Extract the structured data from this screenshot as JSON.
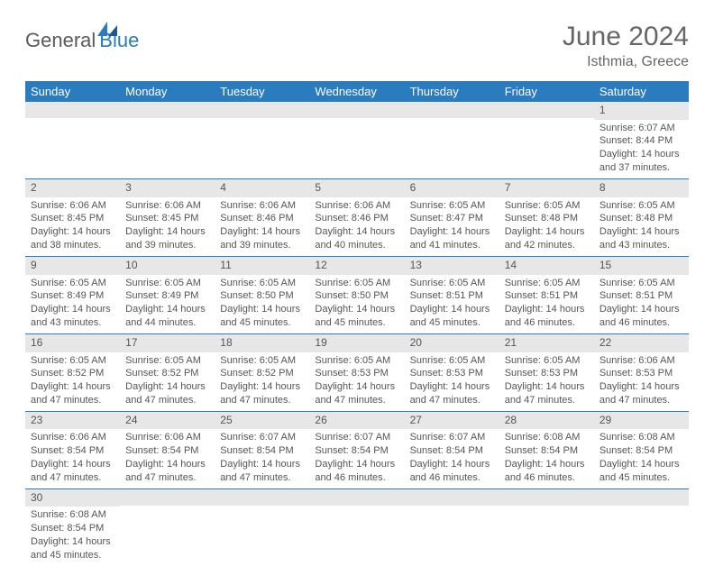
{
  "logo": {
    "part1": "General",
    "part2": "Blue"
  },
  "header": {
    "title": "June 2024",
    "location": "Isthmia, Greece"
  },
  "colors": {
    "header_bg": "#2b7bbf",
    "header_text": "#ffffff",
    "daynum_bg": "#e7e7e7",
    "cell_border": "#2b7bbf",
    "body_text": "#555555",
    "page_bg": "#ffffff"
  },
  "day_labels": [
    "Sunday",
    "Monday",
    "Tuesday",
    "Wednesday",
    "Thursday",
    "Friday",
    "Saturday"
  ],
  "weeks": [
    [
      null,
      null,
      null,
      null,
      null,
      null,
      {
        "n": "1",
        "sunrise": "Sunrise: 6:07 AM",
        "sunset": "Sunset: 8:44 PM",
        "day1": "Daylight: 14 hours",
        "day2": "and 37 minutes."
      }
    ],
    [
      {
        "n": "2",
        "sunrise": "Sunrise: 6:06 AM",
        "sunset": "Sunset: 8:45 PM",
        "day1": "Daylight: 14 hours",
        "day2": "and 38 minutes."
      },
      {
        "n": "3",
        "sunrise": "Sunrise: 6:06 AM",
        "sunset": "Sunset: 8:45 PM",
        "day1": "Daylight: 14 hours",
        "day2": "and 39 minutes."
      },
      {
        "n": "4",
        "sunrise": "Sunrise: 6:06 AM",
        "sunset": "Sunset: 8:46 PM",
        "day1": "Daylight: 14 hours",
        "day2": "and 39 minutes."
      },
      {
        "n": "5",
        "sunrise": "Sunrise: 6:06 AM",
        "sunset": "Sunset: 8:46 PM",
        "day1": "Daylight: 14 hours",
        "day2": "and 40 minutes."
      },
      {
        "n": "6",
        "sunrise": "Sunrise: 6:05 AM",
        "sunset": "Sunset: 8:47 PM",
        "day1": "Daylight: 14 hours",
        "day2": "and 41 minutes."
      },
      {
        "n": "7",
        "sunrise": "Sunrise: 6:05 AM",
        "sunset": "Sunset: 8:48 PM",
        "day1": "Daylight: 14 hours",
        "day2": "and 42 minutes."
      },
      {
        "n": "8",
        "sunrise": "Sunrise: 6:05 AM",
        "sunset": "Sunset: 8:48 PM",
        "day1": "Daylight: 14 hours",
        "day2": "and 43 minutes."
      }
    ],
    [
      {
        "n": "9",
        "sunrise": "Sunrise: 6:05 AM",
        "sunset": "Sunset: 8:49 PM",
        "day1": "Daylight: 14 hours",
        "day2": "and 43 minutes."
      },
      {
        "n": "10",
        "sunrise": "Sunrise: 6:05 AM",
        "sunset": "Sunset: 8:49 PM",
        "day1": "Daylight: 14 hours",
        "day2": "and 44 minutes."
      },
      {
        "n": "11",
        "sunrise": "Sunrise: 6:05 AM",
        "sunset": "Sunset: 8:50 PM",
        "day1": "Daylight: 14 hours",
        "day2": "and 45 minutes."
      },
      {
        "n": "12",
        "sunrise": "Sunrise: 6:05 AM",
        "sunset": "Sunset: 8:50 PM",
        "day1": "Daylight: 14 hours",
        "day2": "and 45 minutes."
      },
      {
        "n": "13",
        "sunrise": "Sunrise: 6:05 AM",
        "sunset": "Sunset: 8:51 PM",
        "day1": "Daylight: 14 hours",
        "day2": "and 45 minutes."
      },
      {
        "n": "14",
        "sunrise": "Sunrise: 6:05 AM",
        "sunset": "Sunset: 8:51 PM",
        "day1": "Daylight: 14 hours",
        "day2": "and 46 minutes."
      },
      {
        "n": "15",
        "sunrise": "Sunrise: 6:05 AM",
        "sunset": "Sunset: 8:51 PM",
        "day1": "Daylight: 14 hours",
        "day2": "and 46 minutes."
      }
    ],
    [
      {
        "n": "16",
        "sunrise": "Sunrise: 6:05 AM",
        "sunset": "Sunset: 8:52 PM",
        "day1": "Daylight: 14 hours",
        "day2": "and 47 minutes."
      },
      {
        "n": "17",
        "sunrise": "Sunrise: 6:05 AM",
        "sunset": "Sunset: 8:52 PM",
        "day1": "Daylight: 14 hours",
        "day2": "and 47 minutes."
      },
      {
        "n": "18",
        "sunrise": "Sunrise: 6:05 AM",
        "sunset": "Sunset: 8:52 PM",
        "day1": "Daylight: 14 hours",
        "day2": "and 47 minutes."
      },
      {
        "n": "19",
        "sunrise": "Sunrise: 6:05 AM",
        "sunset": "Sunset: 8:53 PM",
        "day1": "Daylight: 14 hours",
        "day2": "and 47 minutes."
      },
      {
        "n": "20",
        "sunrise": "Sunrise: 6:05 AM",
        "sunset": "Sunset: 8:53 PM",
        "day1": "Daylight: 14 hours",
        "day2": "and 47 minutes."
      },
      {
        "n": "21",
        "sunrise": "Sunrise: 6:05 AM",
        "sunset": "Sunset: 8:53 PM",
        "day1": "Daylight: 14 hours",
        "day2": "and 47 minutes."
      },
      {
        "n": "22",
        "sunrise": "Sunrise: 6:06 AM",
        "sunset": "Sunset: 8:53 PM",
        "day1": "Daylight: 14 hours",
        "day2": "and 47 minutes."
      }
    ],
    [
      {
        "n": "23",
        "sunrise": "Sunrise: 6:06 AM",
        "sunset": "Sunset: 8:54 PM",
        "day1": "Daylight: 14 hours",
        "day2": "and 47 minutes."
      },
      {
        "n": "24",
        "sunrise": "Sunrise: 6:06 AM",
        "sunset": "Sunset: 8:54 PM",
        "day1": "Daylight: 14 hours",
        "day2": "and 47 minutes."
      },
      {
        "n": "25",
        "sunrise": "Sunrise: 6:07 AM",
        "sunset": "Sunset: 8:54 PM",
        "day1": "Daylight: 14 hours",
        "day2": "and 47 minutes."
      },
      {
        "n": "26",
        "sunrise": "Sunrise: 6:07 AM",
        "sunset": "Sunset: 8:54 PM",
        "day1": "Daylight: 14 hours",
        "day2": "and 46 minutes."
      },
      {
        "n": "27",
        "sunrise": "Sunrise: 6:07 AM",
        "sunset": "Sunset: 8:54 PM",
        "day1": "Daylight: 14 hours",
        "day2": "and 46 minutes."
      },
      {
        "n": "28",
        "sunrise": "Sunrise: 6:08 AM",
        "sunset": "Sunset: 8:54 PM",
        "day1": "Daylight: 14 hours",
        "day2": "and 46 minutes."
      },
      {
        "n": "29",
        "sunrise": "Sunrise: 6:08 AM",
        "sunset": "Sunset: 8:54 PM",
        "day1": "Daylight: 14 hours",
        "day2": "and 45 minutes."
      }
    ],
    [
      {
        "n": "30",
        "sunrise": "Sunrise: 6:08 AM",
        "sunset": "Sunset: 8:54 PM",
        "day1": "Daylight: 14 hours",
        "day2": "and 45 minutes."
      },
      null,
      null,
      null,
      null,
      null,
      null
    ]
  ]
}
